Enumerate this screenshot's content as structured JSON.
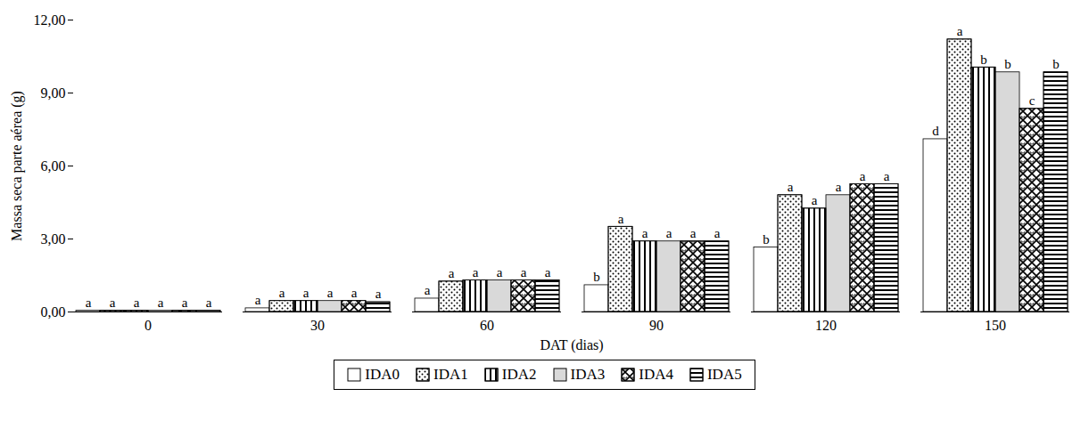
{
  "chart_data": {
    "type": "bar",
    "x_label": "DAT (dias)",
    "y_label": "Massa seca parte aérea (g)",
    "categories": [
      "0",
      "30",
      "60",
      "90",
      "120",
      "150"
    ],
    "ylim": [
      0,
      12
    ],
    "yticks": [
      {
        "value": 0,
        "label": "0,00"
      },
      {
        "value": 3,
        "label": "3,00"
      },
      {
        "value": 6,
        "label": "6,00"
      },
      {
        "value": 9,
        "label": "9,00"
      },
      {
        "value": 12,
        "label": "12,00"
      }
    ],
    "legend": "bottom",
    "series": [
      {
        "name": "IDA0",
        "color": "#ffffff",
        "values": [
          0.05,
          0.15,
          0.55,
          1.1,
          2.65,
          7.1
        ],
        "letters": [
          "a",
          "a",
          "a",
          "b",
          "b",
          "d"
        ]
      },
      {
        "name": "IDA1",
        "color": "#ffffff",
        "values": [
          0.05,
          0.45,
          1.25,
          3.5,
          4.8,
          11.2
        ],
        "letters": [
          "a",
          "a",
          "a",
          "a",
          "a",
          "a"
        ]
      },
      {
        "name": "IDA2",
        "color": "#ffffff",
        "values": [
          0.05,
          0.45,
          1.3,
          2.9,
          4.25,
          10.05
        ],
        "letters": [
          "a",
          "a",
          "a",
          "a",
          "a",
          "b"
        ]
      },
      {
        "name": "IDA3",
        "color": "#d9d9d9",
        "values": [
          0.05,
          0.45,
          1.3,
          2.9,
          4.8,
          9.85
        ],
        "letters": [
          "a",
          "a",
          "a",
          "a",
          "a",
          "b"
        ]
      },
      {
        "name": "IDA4",
        "color": "#ffffff",
        "values": [
          0.05,
          0.45,
          1.3,
          2.9,
          5.25,
          8.35
        ],
        "letters": [
          "a",
          "a",
          "a",
          "a",
          "a",
          "c"
        ]
      },
      {
        "name": "IDA5",
        "color": "#ffffff",
        "values": [
          0.05,
          0.4,
          1.3,
          2.9,
          5.25,
          9.85
        ],
        "letters": [
          "a",
          "a",
          "a",
          "a",
          "a",
          "b"
        ]
      }
    ]
  }
}
